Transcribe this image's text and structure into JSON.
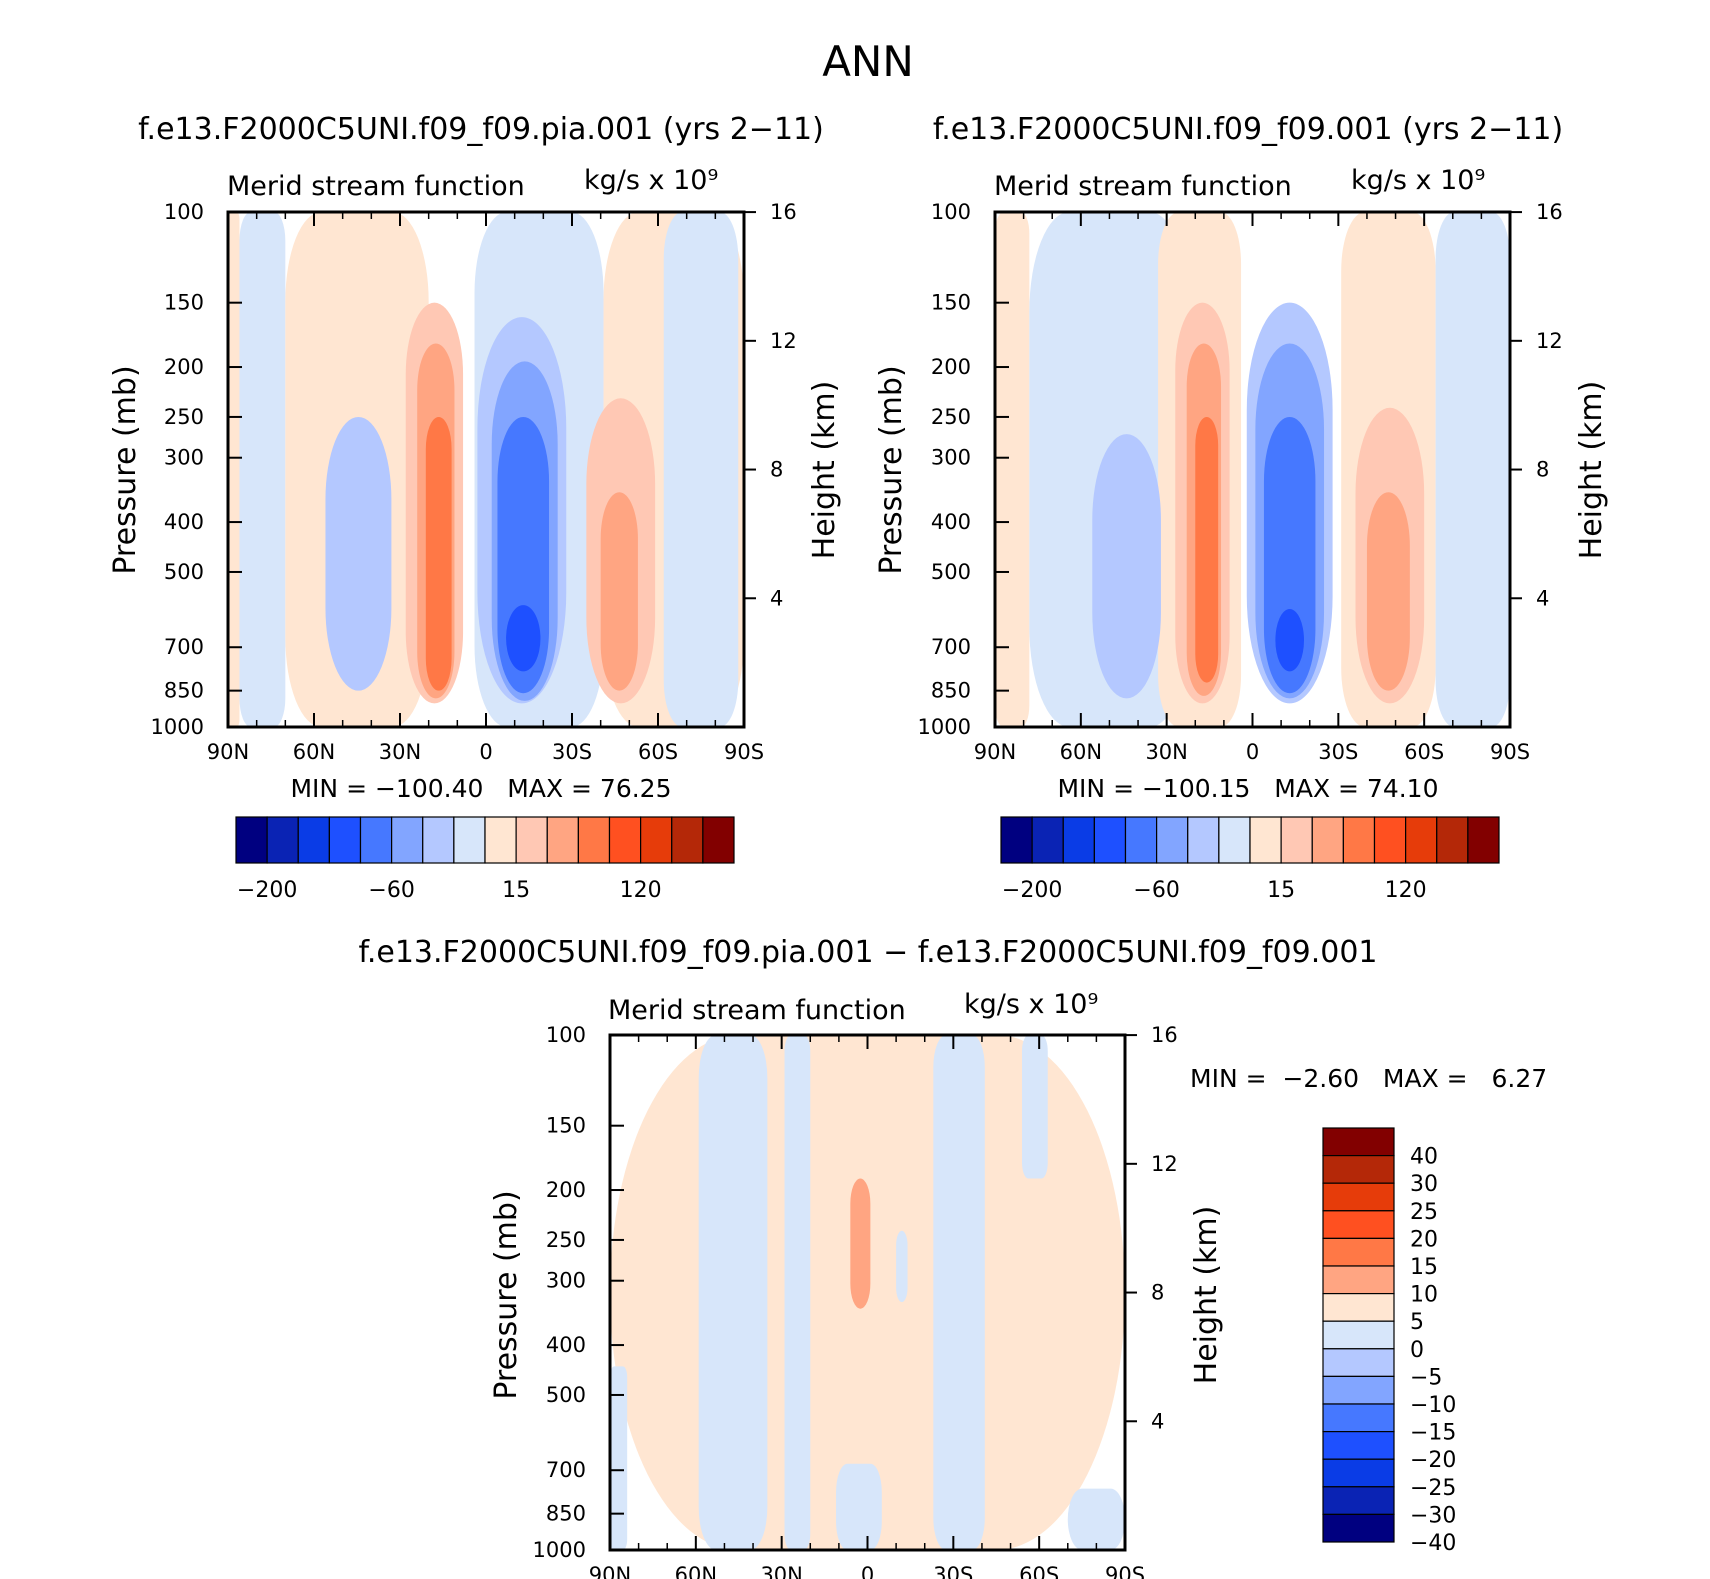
{
  "figure": {
    "title": "ANN"
  },
  "colors": {
    "main_scale": [
      "#000080",
      "#0a23b4",
      "#0a3ce6",
      "#1e50ff",
      "#4678ff",
      "#82a5ff",
      "#b4c8ff",
      "#d7e6fa",
      "#ffe6d2",
      "#ffc8b4",
      "#ffa582",
      "#ff7846",
      "#ff5020",
      "#e63c0a",
      "#b42808",
      "#820000"
    ],
    "diff_scale": [
      "#000080",
      "#0a23b4",
      "#0a3ce6",
      "#1e50ff",
      "#4678ff",
      "#82a5ff",
      "#b4c8ff",
      "#d7e6fa",
      "#ffe6d2",
      "#ffa582",
      "#ff7846",
      "#ff5020",
      "#e63c0a",
      "#b42808",
      "#820000"
    ]
  },
  "chart_data": [
    {
      "type": "heatmap",
      "title": "f.e13.F2000C5UNI.f09_f09.pia.001 (yrs 2−11)",
      "subtitle": "Merid stream function",
      "units": "kg/s x 10⁹",
      "ylabel": "Pressure (mb)",
      "ylabel_right": "Height (km)",
      "x_ticks": [
        "90N",
        "60N",
        "30N",
        "0",
        "30S",
        "60S",
        "90S"
      ],
      "y_ticks": [
        100,
        150,
        200,
        250,
        300,
        400,
        500,
        700,
        850,
        1000
      ],
      "y_right_ticks": [
        16,
        12,
        8,
        4
      ],
      "ylim": [
        1000,
        100
      ],
      "min_label": "MIN =",
      "max_label": "MAX =",
      "min": "−100.40",
      "max": "76.25",
      "colorbar_labels": [
        "−200",
        "−60",
        "15",
        "120"
      ],
      "cells": [
        {
          "lat0": 86,
          "lat1": 90,
          "p0": 1000,
          "p1": 100,
          "level": "0-15"
        },
        {
          "lat0": 70,
          "lat1": 86,
          "p0": 1000,
          "p1": 100,
          "level": "-15-0"
        },
        {
          "lat0": 20,
          "lat1": 70,
          "p0": 1000,
          "p1": 100,
          "level": "0-15"
        },
        {
          "lat0": 33,
          "lat1": 56,
          "p0": 850,
          "p1": 250,
          "level": "-30-15"
        },
        {
          "lat0": 8,
          "lat1": 28,
          "p0": 900,
          "p1": 150,
          "level": "15-30"
        },
        {
          "lat0": 11,
          "lat1": 24,
          "p0": 880,
          "p1": 180,
          "level": "30-60"
        },
        {
          "lat0": 12,
          "lat1": 21,
          "p0": 850,
          "p1": 250,
          "level": "60-90"
        },
        {
          "lat0": -41,
          "lat1": 4,
          "p0": 1000,
          "p1": 100,
          "level": "-15-0"
        },
        {
          "lat0": -28,
          "lat1": 3,
          "p0": 900,
          "p1": 160,
          "level": "-30-15"
        },
        {
          "lat0": -25,
          "lat1": -2,
          "p0": 890,
          "p1": 195,
          "level": "-60-30"
        },
        {
          "lat0": -22,
          "lat1": -4,
          "p0": 860,
          "p1": 250,
          "level": "-90-60"
        },
        {
          "lat0": -19,
          "lat1": -7,
          "p0": 780,
          "p1": 580,
          "level": "-120-90"
        },
        {
          "lat0": -90,
          "lat1": -41,
          "p0": 1000,
          "p1": 100,
          "level": "0-15"
        },
        {
          "lat0": -59,
          "lat1": -35,
          "p0": 900,
          "p1": 230,
          "level": "15-30"
        },
        {
          "lat0": -53,
          "lat1": -40,
          "p0": 850,
          "p1": 350,
          "level": "30-60"
        },
        {
          "lat0": -88,
          "lat1": -62,
          "p0": 1000,
          "p1": 100,
          "level": "-15-0"
        }
      ]
    },
    {
      "type": "heatmap",
      "title": "f.e13.F2000C5UNI.f09_f09.001 (yrs 2−11)",
      "subtitle": "Merid stream function",
      "units": "kg/s x 10⁹",
      "ylabel": "Pressure (mb)",
      "ylabel_right": "Height (km)",
      "x_ticks": [
        "90N",
        "60N",
        "30N",
        "0",
        "30S",
        "60S",
        "90S"
      ],
      "y_ticks": [
        100,
        150,
        200,
        250,
        300,
        400,
        500,
        700,
        850,
        1000
      ],
      "y_right_ticks": [
        16,
        12,
        8,
        4
      ],
      "ylim": [
        1000,
        100
      ],
      "min_label": "MIN =",
      "max_label": "MAX =",
      "min": "−100.15",
      "max": "74.10",
      "colorbar_labels": [
        "−200",
        "−60",
        "15",
        "120"
      ],
      "cells": [
        {
          "lat0": 78,
          "lat1": 90,
          "p0": 1000,
          "p1": 100,
          "level": "0-15"
        },
        {
          "lat0": 22,
          "lat1": 78,
          "p0": 1000,
          "p1": 100,
          "level": "-15-0"
        },
        {
          "lat0": 4,
          "lat1": 33,
          "p0": 1000,
          "p1": 100,
          "level": "0-15"
        },
        {
          "lat0": 32,
          "lat1": 56,
          "p0": 880,
          "p1": 270,
          "level": "-30-15"
        },
        {
          "lat0": 8,
          "lat1": 27,
          "p0": 900,
          "p1": 150,
          "level": "15-30"
        },
        {
          "lat0": 11,
          "lat1": 23,
          "p0": 870,
          "p1": 180,
          "level": "30-60"
        },
        {
          "lat0": 12,
          "lat1": 20,
          "p0": 820,
          "p1": 250,
          "level": "60-90"
        },
        {
          "lat0": -28,
          "lat1": 2,
          "p0": 900,
          "p1": 150,
          "level": "-30-15"
        },
        {
          "lat0": -25,
          "lat1": -1,
          "p0": 880,
          "p1": 180,
          "level": "-60-30"
        },
        {
          "lat0": -22,
          "lat1": -4,
          "p0": 860,
          "p1": 250,
          "level": "-90-60"
        },
        {
          "lat0": -18,
          "lat1": -8,
          "p0": 780,
          "p1": 590,
          "level": "-120-90"
        },
        {
          "lat0": -64,
          "lat1": -31,
          "p0": 1000,
          "p1": 100,
          "level": "0-15"
        },
        {
          "lat0": -60,
          "lat1": -36,
          "p0": 900,
          "p1": 240,
          "level": "15-30"
        },
        {
          "lat0": -55,
          "lat1": -40,
          "p0": 850,
          "p1": 350,
          "level": "30-60"
        },
        {
          "lat0": -90,
          "lat1": -64,
          "p0": 1000,
          "p1": 100,
          "level": "-15-0"
        }
      ]
    },
    {
      "type": "heatmap",
      "title": "f.e13.F2000C5UNI.f09_f09.pia.001 − f.e13.F2000C5UNI.f09_f09.001",
      "subtitle": "Merid stream function",
      "units": "kg/s x 10⁹",
      "ylabel": "Pressure (mb)",
      "ylabel_right": "Height (km)",
      "x_ticks": [
        "90N",
        "60N",
        "30N",
        "0",
        "30S",
        "60S",
        "90S"
      ],
      "y_ticks": [
        100,
        150,
        200,
        250,
        300,
        400,
        500,
        700,
        850,
        1000
      ],
      "y_right_ticks": [
        16,
        12,
        8,
        4
      ],
      "ylim": [
        1000,
        100
      ],
      "min_label": "MIN =",
      "max_label": "MAX =",
      "min": "−2.60",
      "max": "6.27",
      "colorbar_labels": [
        "40",
        "30",
        "25",
        "20",
        "15",
        "10",
        "5",
        "0",
        "−5",
        "−10",
        "−15",
        "−20",
        "−25",
        "−30",
        "−40"
      ],
      "cells": [
        {
          "lat0": -90,
          "lat1": 90,
          "p0": 1000,
          "p1": 100,
          "level": "0-5"
        },
        {
          "lat0": 35,
          "lat1": 59,
          "p0": 1000,
          "p1": 100,
          "level": "-5-0"
        },
        {
          "lat0": 20,
          "lat1": 29,
          "p0": 1000,
          "p1": 100,
          "level": "-5-0"
        },
        {
          "lat0": -5,
          "lat1": 11,
          "p0": 1000,
          "p1": 680,
          "level": "-5-0"
        },
        {
          "lat0": -41,
          "lat1": -23,
          "p0": 1000,
          "p1": 100,
          "level": "-5-0"
        },
        {
          "lat0": -63,
          "lat1": -54,
          "p0": 190,
          "p1": 100,
          "level": "-5-0"
        },
        {
          "lat0": -1,
          "lat1": 6,
          "p0": 340,
          "p1": 190,
          "level": "5-10"
        },
        {
          "lat0": -14,
          "lat1": -10,
          "p0": 330,
          "p1": 240,
          "level": "-5-0"
        },
        {
          "lat0": 84,
          "lat1": 90,
          "p0": 1000,
          "p1": 440,
          "level": "-5-0"
        },
        {
          "lat0": -90,
          "lat1": -70,
          "p0": 1000,
          "p1": 760,
          "level": "-5-0"
        }
      ]
    }
  ]
}
